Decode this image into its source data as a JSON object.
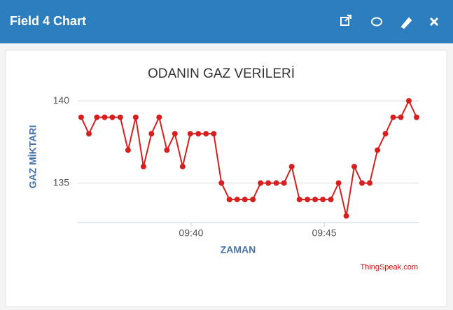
{
  "header": {
    "title": "Field 4 Chart"
  },
  "chart_data": {
    "type": "line",
    "title": "ODANIN GAZ VERİLERİ",
    "x_label": "ZAMAN",
    "y_label": "GAZ MİKTARI",
    "credit": "ThingSpeak.com",
    "x": [
      35.87,
      36.16,
      36.46,
      36.75,
      37.04,
      37.34,
      37.63,
      37.92,
      38.21,
      38.51,
      38.8,
      39.09,
      39.39,
      39.68,
      39.97,
      40.27,
      40.56,
      40.85,
      41.14,
      41.44,
      41.73,
      42.02,
      42.32,
      42.61,
      42.9,
      43.2,
      43.49,
      43.78,
      44.07,
      44.37,
      44.66,
      44.95,
      45.25,
      45.54,
      45.83,
      46.13,
      46.42,
      46.71,
      47.0,
      47.3,
      47.59,
      47.88,
      48.18,
      48.47
    ],
    "series": [
      {
        "name": "Field 4",
        "color": "#d62020",
        "values": [
          139,
          138,
          139,
          139,
          139,
          139,
          137,
          139,
          136,
          138,
          139,
          137,
          138,
          136,
          138,
          138,
          138,
          138,
          135,
          134,
          134,
          134,
          134,
          135,
          135,
          135,
          135,
          136,
          134,
          134,
          134,
          134,
          134,
          135,
          133,
          136,
          135,
          135,
          137,
          138,
          139,
          139,
          140,
          139
        ]
      }
    ],
    "xlim": [
      35.74,
      48.55
    ],
    "xticks": [
      {
        "value": 40,
        "label": "09:40"
      },
      {
        "value": 45,
        "label": "09:45"
      }
    ],
    "ylim": [
      132.6,
      140.6
    ],
    "yticks": [
      135,
      140
    ],
    "grid": true
  }
}
